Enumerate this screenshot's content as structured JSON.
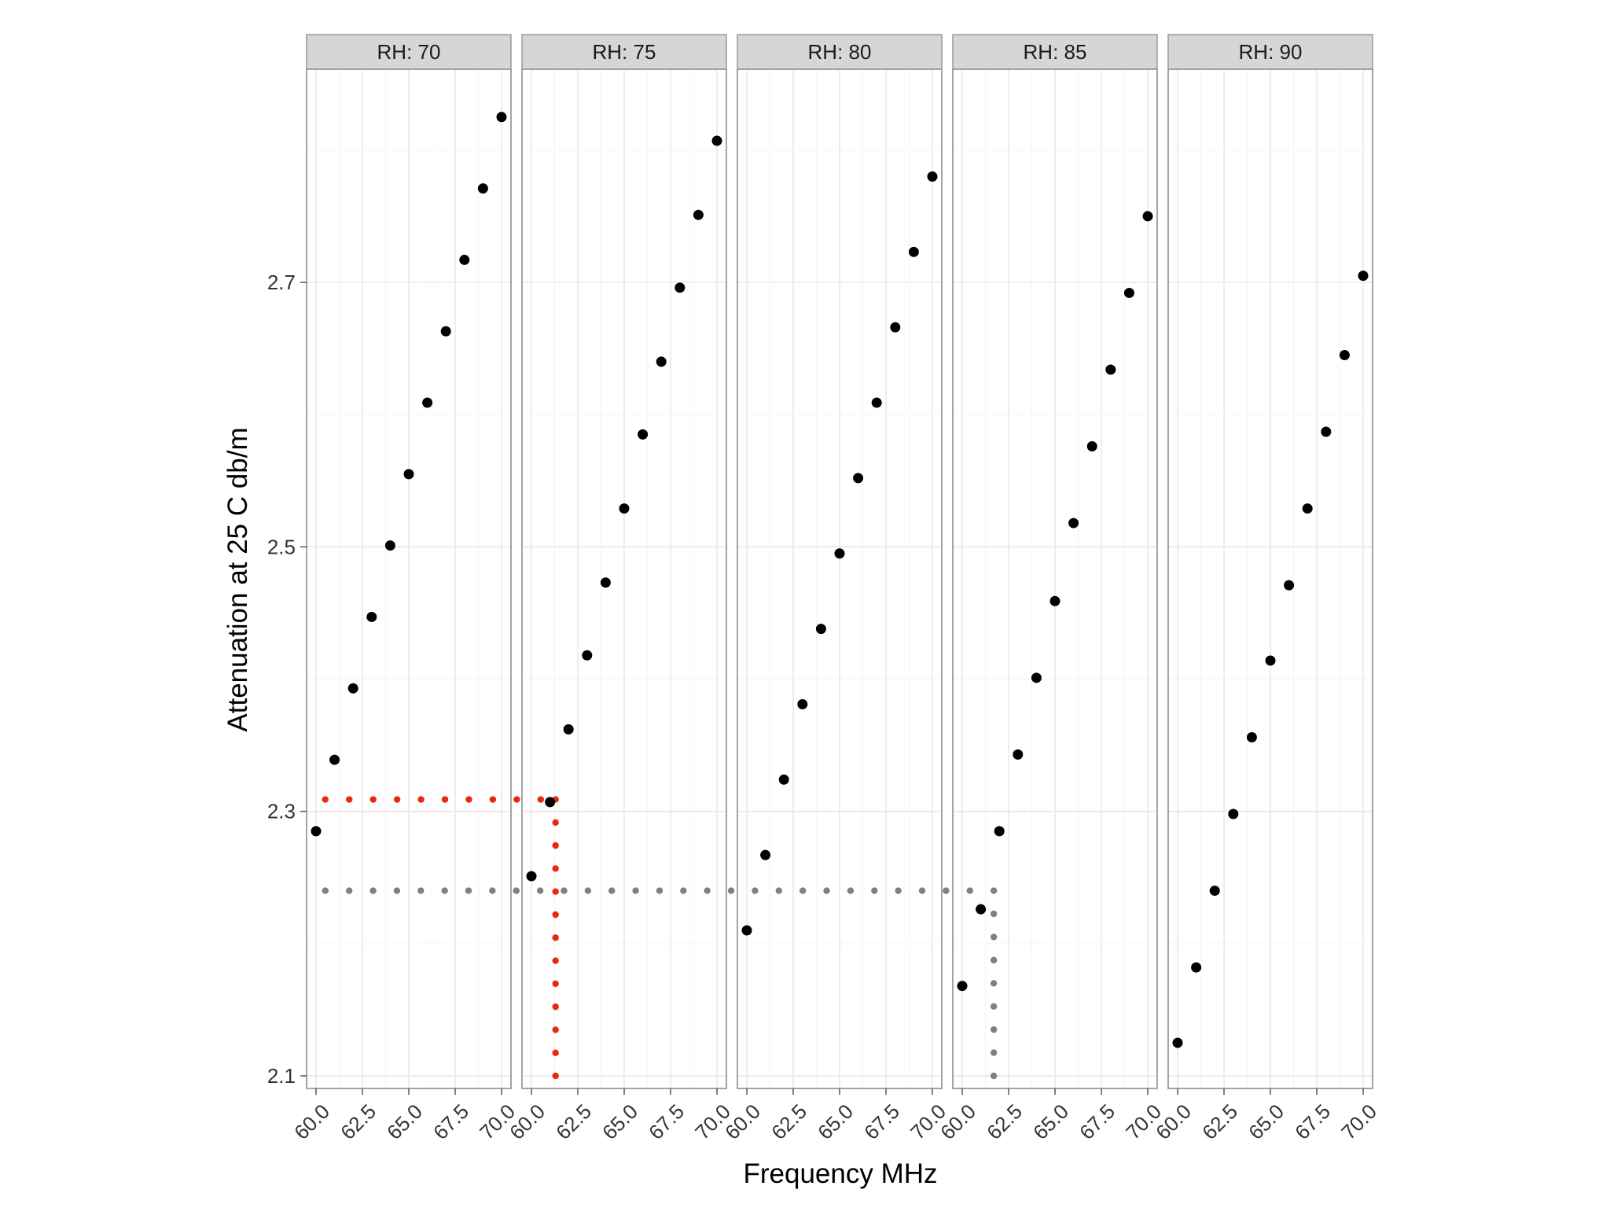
{
  "chart_data": {
    "type": "scatter",
    "title": "",
    "xlabel": "Frequency MHz",
    "ylabel": "Attenuation at 25 C db/m",
    "xlim": [
      60.0,
      70.0
    ],
    "ylim": [
      2.1,
      2.7
    ],
    "x_ticks": [
      "60.0",
      "62.5",
      "65.0",
      "67.5",
      "70.0"
    ],
    "y_ticks": [
      "2.1",
      "2.3",
      "2.5",
      "2.7"
    ],
    "grid": true,
    "facets": [
      {
        "label": "RH: 70",
        "x": [
          60,
          61,
          62,
          63,
          64,
          65,
          66,
          67,
          68,
          69,
          70
        ],
        "y": [
          2.285,
          2.339,
          2.393,
          2.447,
          2.501,
          2.555,
          2.609,
          2.663,
          2.717,
          2.771,
          2.825
        ]
      },
      {
        "label": "RH: 75",
        "x": [
          60,
          61,
          62,
          63,
          64,
          65,
          66,
          67,
          68,
          69,
          70
        ],
        "y": [
          2.251,
          2.307,
          2.362,
          2.418,
          2.473,
          2.529,
          2.585,
          2.64,
          2.696,
          2.751,
          2.807
        ]
      },
      {
        "label": "RH: 80",
        "x": [
          60,
          61,
          62,
          63,
          64,
          65,
          66,
          67,
          68,
          69,
          70
        ],
        "y": [
          2.21,
          2.267,
          2.324,
          2.381,
          2.438,
          2.495,
          2.552,
          2.609,
          2.666,
          2.723,
          2.78
        ]
      },
      {
        "label": "RH: 85",
        "x": [
          60,
          61,
          62,
          63,
          64,
          65,
          66,
          67,
          68,
          69,
          70
        ],
        "y": [
          2.168,
          2.226,
          2.285,
          2.343,
          2.401,
          2.459,
          2.518,
          2.576,
          2.634,
          2.692,
          2.75
        ]
      },
      {
        "label": "RH: 90",
        "x": [
          60,
          61,
          62,
          63,
          64,
          65,
          66,
          67,
          68,
          69,
          70
        ],
        "y": [
          2.125,
          2.182,
          2.24,
          2.298,
          2.356,
          2.414,
          2.471,
          2.529,
          2.587,
          2.645,
          2.705
        ]
      }
    ],
    "annotations": [
      {
        "style": "dotted",
        "color": "#e8290f",
        "points": [
          {
            "facet": 0,
            "x": 60.5,
            "y": 2.309
          },
          {
            "facet": 1,
            "x": 60.5,
            "y": 2.309
          },
          {
            "facet": 1,
            "x": 61.3,
            "y": 2.309
          },
          {
            "facet": 1,
            "x": 61.3,
            "y": 2.1
          }
        ]
      },
      {
        "style": "dotted",
        "color": "#808080",
        "points": [
          {
            "facet": 0,
            "x": 60.5,
            "y": 2.24
          },
          {
            "facet": 3,
            "x": 61.7,
            "y": 2.24
          },
          {
            "facet": 3,
            "x": 61.7,
            "y": 2.1
          }
        ]
      }
    ],
    "colors": {
      "point": "#000000",
      "panel_border": "#9a9a9a",
      "strip_fill": "#d6d6d6",
      "grid_major": "#ebebeb",
      "grid_minor": "#f6f6f6"
    }
  }
}
